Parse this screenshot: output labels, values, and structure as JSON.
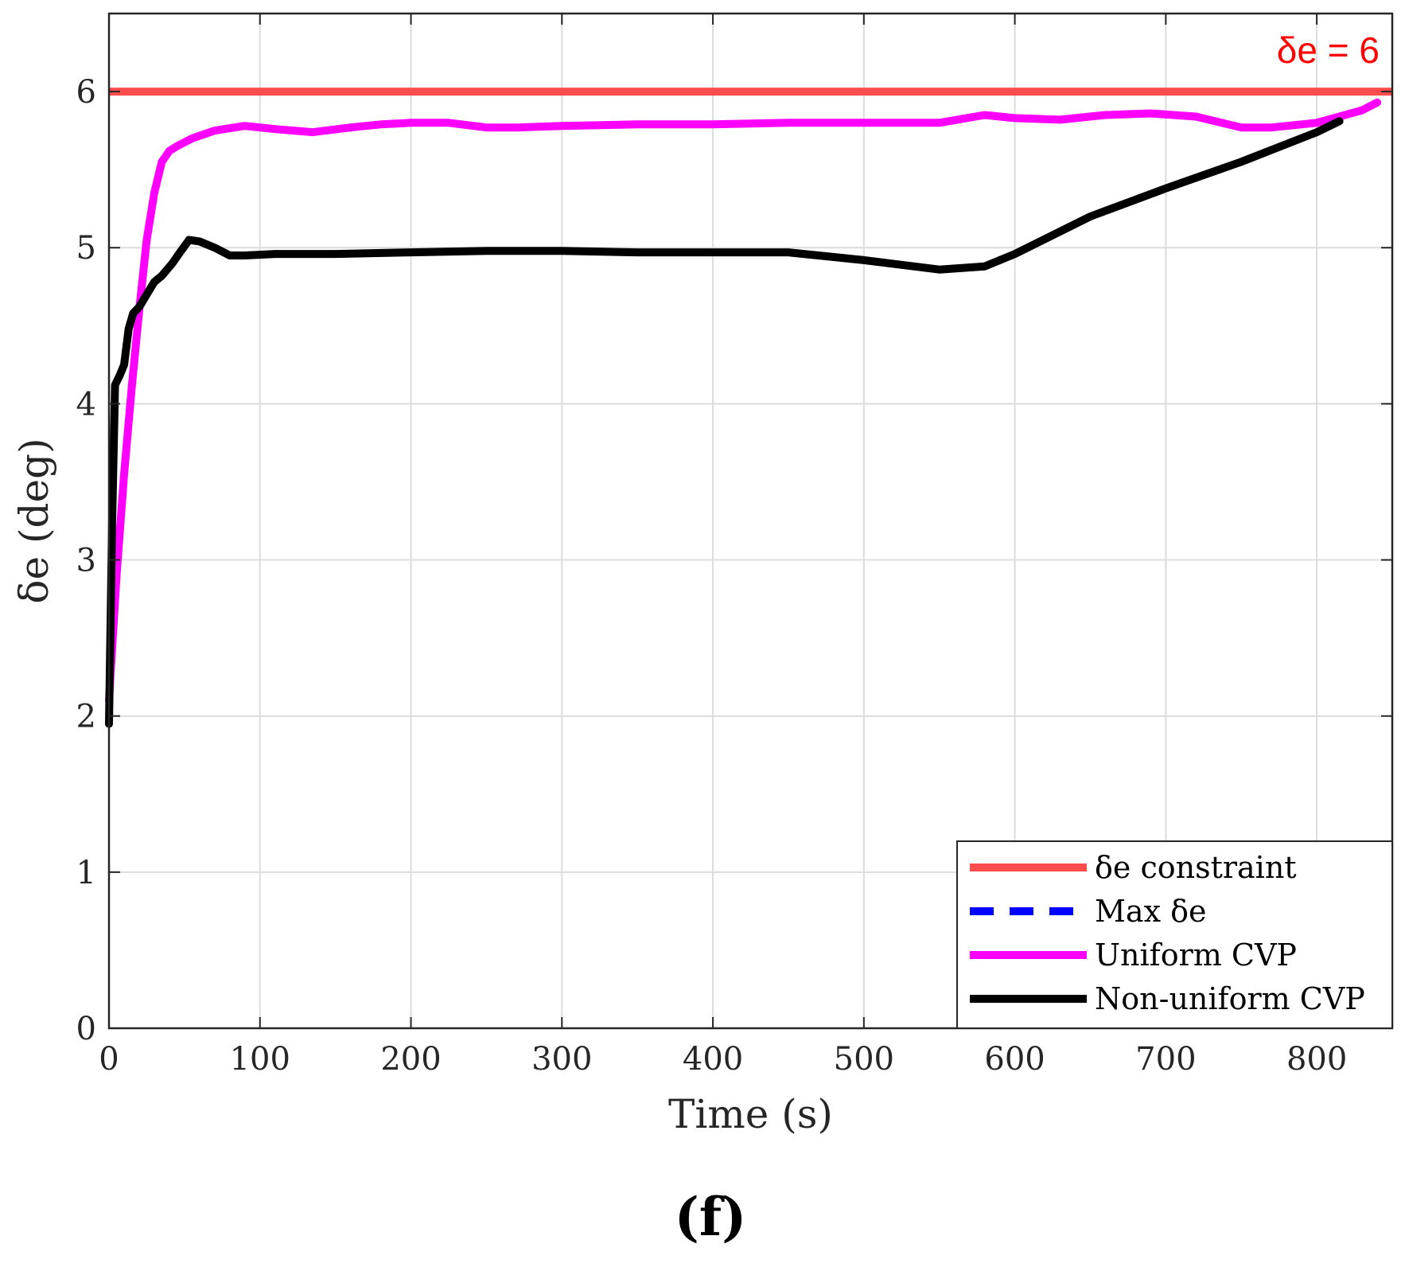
{
  "chart_data": {
    "type": "line",
    "xlabel": "Time (s)",
    "ylabel": "δe (deg)",
    "xlim": [
      0,
      850
    ],
    "ylim": [
      0,
      6.5
    ],
    "xticks": [
      "0",
      "100",
      "200",
      "300",
      "400",
      "500",
      "600",
      "700",
      "800"
    ],
    "yticks": [
      "0",
      "1",
      "2",
      "3",
      "4",
      "5",
      "6"
    ],
    "xtick_values": [
      0,
      100,
      200,
      300,
      400,
      500,
      600,
      700,
      800
    ],
    "ytick_values": [
      0,
      1,
      2,
      3,
      4,
      5,
      6
    ],
    "grid": true,
    "annotation": "δe = 6",
    "panel_label": "(f)",
    "legend_position": "bottom-right",
    "series": [
      {
        "name": "δe constraint",
        "color": "#ff4d4d",
        "dash": "solid",
        "x": [
          0,
          850
        ],
        "y": [
          6,
          6
        ]
      },
      {
        "name": "Max δe",
        "color": "#0000ff",
        "dash": "dashed",
        "x": [],
        "y": []
      },
      {
        "name": "Uniform CVP",
        "color": "#ff00ff",
        "dash": "solid",
        "x": [
          0,
          5,
          10,
          15,
          20,
          25,
          30,
          35,
          40,
          45,
          55,
          70,
          90,
          110,
          135,
          160,
          180,
          200,
          225,
          250,
          270,
          300,
          350,
          400,
          450,
          500,
          550,
          580,
          600,
          630,
          660,
          690,
          720,
          750,
          770,
          800,
          830,
          840
        ],
        "y": [
          2.1,
          2.9,
          3.55,
          4.1,
          4.6,
          5.05,
          5.35,
          5.55,
          5.62,
          5.65,
          5.7,
          5.75,
          5.78,
          5.76,
          5.74,
          5.77,
          5.79,
          5.8,
          5.8,
          5.77,
          5.77,
          5.78,
          5.79,
          5.79,
          5.8,
          5.8,
          5.8,
          5.85,
          5.83,
          5.82,
          5.85,
          5.86,
          5.84,
          5.77,
          5.77,
          5.8,
          5.88,
          5.93
        ]
      },
      {
        "name": "Non-uniform CVP",
        "color": "#000000",
        "dash": "solid",
        "x": [
          0,
          2,
          4,
          7,
          10,
          13,
          16,
          20,
          25,
          30,
          35,
          42,
          47,
          53,
          60,
          70,
          80,
          90,
          110,
          150,
          200,
          250,
          300,
          350,
          400,
          450,
          500,
          550,
          580,
          600,
          650,
          700,
          750,
          800,
          815
        ],
        "y": [
          1.95,
          3.2,
          4.12,
          4.18,
          4.25,
          4.48,
          4.58,
          4.62,
          4.7,
          4.78,
          4.82,
          4.9,
          4.97,
          5.05,
          5.04,
          5.0,
          4.95,
          4.95,
          4.96,
          4.96,
          4.97,
          4.98,
          4.98,
          4.97,
          4.97,
          4.97,
          4.92,
          4.86,
          4.88,
          4.96,
          5.2,
          5.38,
          5.55,
          5.74,
          5.81
        ]
      }
    ]
  }
}
